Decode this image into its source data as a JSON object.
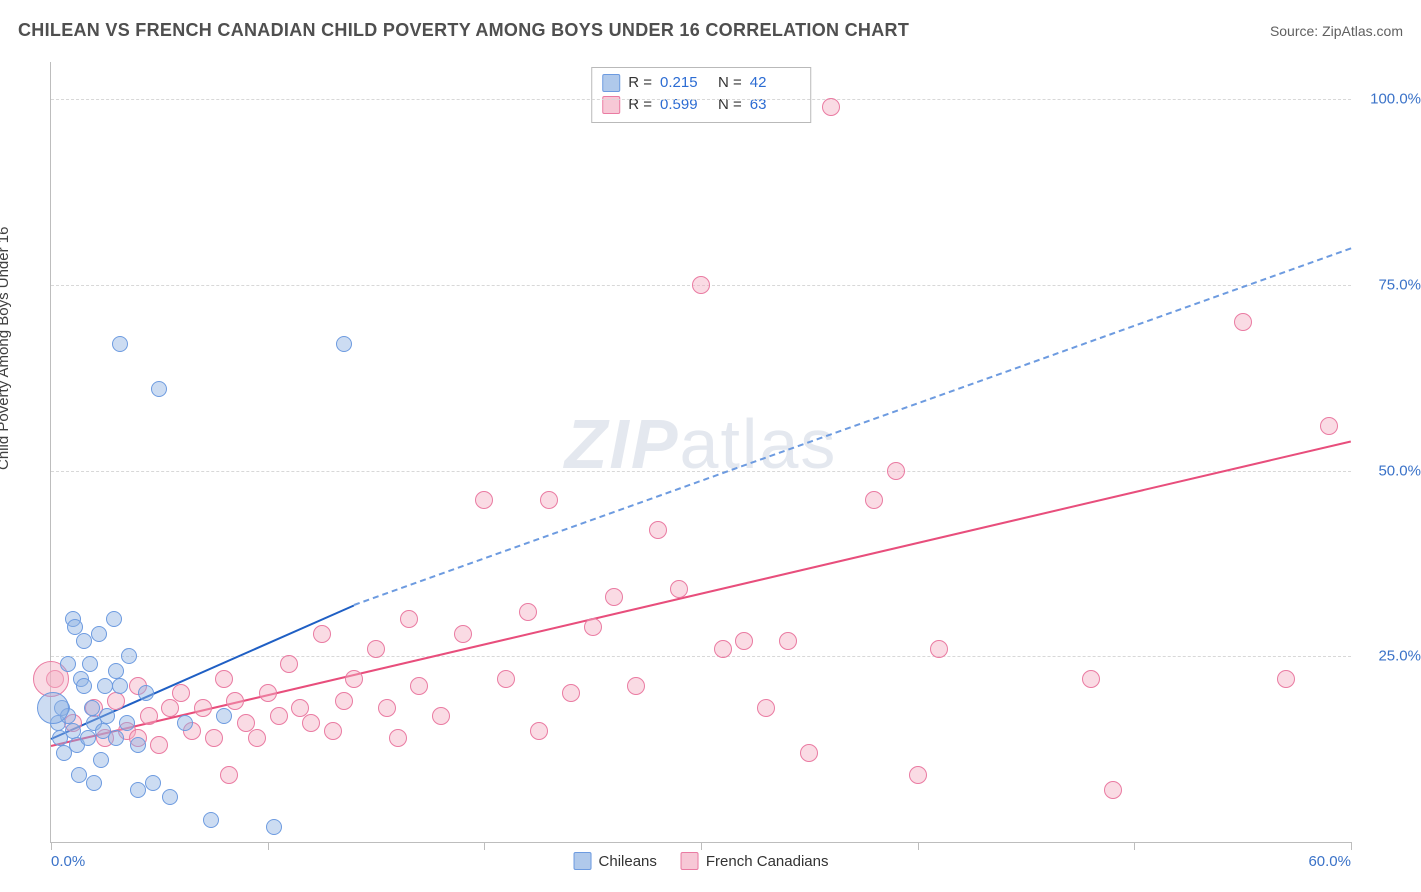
{
  "header": {
    "title": "CHILEAN VS FRENCH CANADIAN CHILD POVERTY AMONG BOYS UNDER 16 CORRELATION CHART",
    "source_prefix": "Source: ",
    "source_name": "ZipAtlas.com"
  },
  "ylabel": "Child Poverty Among Boys Under 16",
  "watermark": {
    "bold": "ZIP",
    "rest": "atlas"
  },
  "axes": {
    "xmin": 0,
    "xmax": 60,
    "ymin": 0,
    "ymax": 105,
    "xticks": [
      0,
      10,
      20,
      30,
      40,
      50,
      60
    ],
    "xtick_labels": {
      "0": "0.0%",
      "60": "60.0%"
    },
    "yticks": [
      25,
      50,
      75,
      100
    ],
    "ytick_labels": {
      "25": "25.0%",
      "50": "50.0%",
      "75": "75.0%",
      "100": "100.0%"
    }
  },
  "colors": {
    "blue_line": "#1f5fc4",
    "blue_dash": "#6d9be0",
    "blue_fill": "rgba(143,178,226,0.45)",
    "blue_stroke": "#6d9be0",
    "pink_line": "#e84e7c",
    "pink_fill": "rgba(244,176,196,0.45)",
    "pink_stroke": "#ea7ba2",
    "tick_text": "#3a72c8",
    "grid": "#d8d8d8",
    "axis": "#bdbdbd"
  },
  "stats": {
    "rows": [
      {
        "r_label": "R =",
        "r_value": "0.215",
        "n_label": "N =",
        "n_value": "42",
        "swatch": "sw-blue"
      },
      {
        "r_label": "R =",
        "r_value": "0.599",
        "n_label": "N =",
        "n_value": "63",
        "swatch": "sw-pink"
      }
    ]
  },
  "legend": {
    "items": [
      {
        "label": "Chileans",
        "swatch": "sw-blue"
      },
      {
        "label": "French Canadians",
        "swatch": "sw-pink"
      }
    ]
  },
  "trend_lines": {
    "pink": {
      "x1": 0,
      "y1": 13,
      "x2": 60,
      "y2": 54
    },
    "blue_solid": {
      "x1": 0,
      "y1": 14,
      "x2": 14,
      "y2": 32
    },
    "blue_dash": {
      "x1": 14,
      "y1": 32,
      "x2": 60,
      "y2": 80
    }
  },
  "series": {
    "blue": {
      "marker_radius": 8,
      "points": [
        [
          0.3,
          16
        ],
        [
          0.4,
          14
        ],
        [
          0.5,
          18
        ],
        [
          0.6,
          12
        ],
        [
          0.8,
          17
        ],
        [
          0.8,
          24
        ],
        [
          1.0,
          15
        ],
        [
          1.0,
          30
        ],
        [
          1.1,
          29
        ],
        [
          1.2,
          13
        ],
        [
          1.3,
          9
        ],
        [
          1.4,
          22
        ],
        [
          1.5,
          21
        ],
        [
          1.5,
          27
        ],
        [
          1.7,
          14
        ],
        [
          1.8,
          24
        ],
        [
          1.9,
          18
        ],
        [
          2.0,
          16
        ],
        [
          2.0,
          8
        ],
        [
          2.2,
          28
        ],
        [
          2.3,
          11
        ],
        [
          2.4,
          15
        ],
        [
          2.5,
          21
        ],
        [
          2.6,
          17
        ],
        [
          2.9,
          30
        ],
        [
          3.0,
          14
        ],
        [
          3.0,
          23
        ],
        [
          3.2,
          21
        ],
        [
          3.2,
          67
        ],
        [
          3.5,
          16
        ],
        [
          3.6,
          25
        ],
        [
          4.0,
          13
        ],
        [
          4.0,
          7
        ],
        [
          4.4,
          20
        ],
        [
          4.7,
          8
        ],
        [
          5.0,
          61
        ],
        [
          5.5,
          6
        ],
        [
          6.2,
          16
        ],
        [
          7.4,
          3
        ],
        [
          8.0,
          17
        ],
        [
          10.3,
          2
        ],
        [
          13.5,
          67
        ]
      ],
      "big_point": {
        "x": 0.1,
        "y": 18,
        "r": 16
      }
    },
    "pink": {
      "marker_radius": 9,
      "points": [
        [
          0.2,
          22
        ],
        [
          1,
          16
        ],
        [
          2,
          18
        ],
        [
          2.5,
          14
        ],
        [
          3,
          19
        ],
        [
          3.5,
          15
        ],
        [
          4,
          21
        ],
        [
          4,
          14
        ],
        [
          4.5,
          17
        ],
        [
          5,
          13
        ],
        [
          5.5,
          18
        ],
        [
          6,
          20
        ],
        [
          6.5,
          15
        ],
        [
          7,
          18
        ],
        [
          7.5,
          14
        ],
        [
          8,
          22
        ],
        [
          8.2,
          9
        ],
        [
          8.5,
          19
        ],
        [
          9,
          16
        ],
        [
          9.5,
          14
        ],
        [
          10,
          20
        ],
        [
          10.5,
          17
        ],
        [
          11,
          24
        ],
        [
          11.5,
          18
        ],
        [
          12,
          16
        ],
        [
          12.5,
          28
        ],
        [
          13,
          15
        ],
        [
          13.5,
          19
        ],
        [
          14,
          22
        ],
        [
          15,
          26
        ],
        [
          15.5,
          18
        ],
        [
          16,
          14
        ],
        [
          16.5,
          30
        ],
        [
          17,
          21
        ],
        [
          18,
          17
        ],
        [
          19,
          28
        ],
        [
          20,
          46
        ],
        [
          21,
          22
        ],
        [
          22,
          31
        ],
        [
          22.5,
          15
        ],
        [
          23,
          46
        ],
        [
          24,
          20
        ],
        [
          25,
          29
        ],
        [
          26,
          33
        ],
        [
          27,
          21
        ],
        [
          28,
          42
        ],
        [
          29,
          34
        ],
        [
          30,
          75
        ],
        [
          31,
          26
        ],
        [
          32,
          27
        ],
        [
          33,
          18
        ],
        [
          34,
          27
        ],
        [
          35,
          12
        ],
        [
          36,
          99
        ],
        [
          38,
          46
        ],
        [
          39,
          50
        ],
        [
          40,
          9
        ],
        [
          41,
          26
        ],
        [
          48,
          22
        ],
        [
          49,
          7
        ],
        [
          55,
          70
        ],
        [
          57,
          22
        ],
        [
          59,
          56
        ]
      ],
      "big_point": {
        "x": 0.0,
        "y": 22,
        "r": 18
      }
    }
  }
}
